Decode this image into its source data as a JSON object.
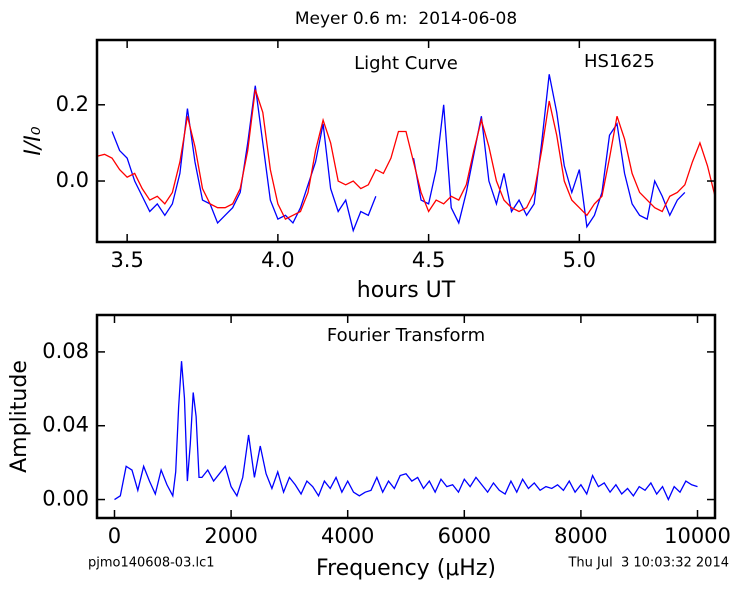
{
  "title": "Meyer 0.6 m:  2014-06-08",
  "footer_left": "pjmo140608-03.lc1",
  "footer_right": "Thu Jul  3 10:03:32 2014",
  "chart_data": [
    {
      "type": "line",
      "annotations": [
        "Light Curve",
        "HS1625"
      ],
      "xlabel": "hours UT",
      "ylabel": "I/I₀",
      "xlim": [
        3.4,
        5.45
      ],
      "ylim": [
        -0.16,
        0.37
      ],
      "xticks": [
        3.5,
        {
          "value": 4,
          "label": "4.0"
        },
        4.5,
        {
          "value": 5,
          "label": "5.0"
        }
      ],
      "yticks": [
        {
          "value": 0,
          "label": "0.0"
        },
        0.2
      ],
      "x": [
        3.4,
        3.425,
        3.45,
        3.475,
        3.5,
        3.525,
        3.55,
        3.575,
        3.6,
        3.625,
        3.65,
        3.675,
        3.7,
        3.725,
        3.75,
        3.775,
        3.8,
        3.825,
        3.85,
        3.875,
        3.9,
        3.925,
        3.95,
        3.975,
        4.0,
        4.025,
        4.05,
        4.075,
        4.1,
        4.125,
        4.15,
        4.175,
        4.2,
        4.225,
        4.25,
        4.275,
        4.3,
        4.325,
        4.35,
        4.375,
        4.4,
        4.425,
        4.45,
        4.475,
        4.5,
        4.525,
        4.55,
        4.575,
        4.6,
        4.625,
        4.65,
        4.675,
        4.7,
        4.725,
        4.75,
        4.775,
        4.8,
        4.825,
        4.85,
        4.875,
        4.9,
        4.925,
        4.95,
        4.975,
        5.0,
        5.025,
        5.05,
        5.075,
        5.1,
        5.125,
        5.15,
        5.175,
        5.2,
        5.225,
        5.25,
        5.275,
        5.3,
        5.325,
        5.35,
        5.375,
        5.4,
        5.425,
        5.45
      ],
      "series": [
        {
          "color": "#0000ff",
          "values": [
            null,
            null,
            0.13,
            0.08,
            0.06,
            0.0,
            -0.04,
            -0.08,
            -0.06,
            -0.09,
            -0.06,
            0.02,
            0.19,
            0.05,
            -0.05,
            -0.06,
            -0.11,
            -0.09,
            -0.07,
            -0.03,
            0.1,
            0.25,
            0.1,
            -0.05,
            -0.1,
            -0.09,
            -0.11,
            -0.07,
            -0.01,
            0.05,
            0.15,
            -0.02,
            -0.08,
            -0.05,
            -0.13,
            -0.08,
            -0.09,
            -0.04,
            null,
            null,
            null,
            null,
            0.06,
            -0.05,
            -0.06,
            0.03,
            0.2,
            -0.07,
            -0.11,
            -0.03,
            0.07,
            0.17,
            0.0,
            -0.06,
            0.02,
            -0.08,
            -0.05,
            -0.09,
            -0.06,
            0.1,
            0.28,
            0.18,
            0.04,
            -0.03,
            0.03,
            -0.12,
            -0.09,
            -0.03,
            0.12,
            0.15,
            0.02,
            -0.06,
            -0.09,
            -0.1,
            0.0,
            -0.04,
            -0.09,
            -0.05,
            -0.03,
            null,
            null,
            null,
            null
          ]
        },
        {
          "color": "#ff0000",
          "values": [
            0.065,
            0.07,
            0.06,
            0.03,
            0.01,
            0.02,
            -0.02,
            -0.05,
            -0.04,
            -0.06,
            -0.03,
            0.05,
            0.17,
            0.09,
            -0.02,
            -0.06,
            -0.07,
            -0.07,
            -0.06,
            -0.02,
            0.08,
            0.24,
            0.18,
            0.03,
            -0.06,
            -0.1,
            -0.09,
            -0.08,
            -0.03,
            0.08,
            0.16,
            0.1,
            0.0,
            -0.01,
            0.0,
            -0.02,
            -0.01,
            0.03,
            0.02,
            0.06,
            0.13,
            0.13,
            0.05,
            -0.03,
            -0.08,
            -0.05,
            -0.06,
            -0.04,
            -0.05,
            -0.01,
            0.08,
            0.16,
            0.09,
            0.0,
            -0.05,
            -0.07,
            -0.08,
            -0.07,
            -0.03,
            0.08,
            0.21,
            0.12,
            0.0,
            -0.05,
            -0.07,
            -0.09,
            -0.06,
            -0.04,
            0.06,
            0.17,
            0.11,
            0.02,
            -0.03,
            -0.05,
            -0.07,
            -0.08,
            -0.04,
            -0.03,
            -0.01,
            0.05,
            0.1,
            0.04,
            -0.04
          ]
        }
      ]
    },
    {
      "type": "line",
      "annotations": [
        "Fourier Transform"
      ],
      "xlabel": "Frequency (μHz)",
      "ylabel": "Amplitude",
      "xlim": [
        -300,
        10300
      ],
      "ylim": [
        -0.01,
        0.1
      ],
      "xticks": [
        0,
        2000,
        4000,
        6000,
        8000,
        10000
      ],
      "yticks": [
        {
          "value": 0,
          "label": "0.00"
        },
        0.04,
        0.08
      ],
      "x": [
        0,
        100,
        200,
        300,
        400,
        500,
        600,
        700,
        800,
        900,
        1000,
        1050,
        1100,
        1150,
        1200,
        1250,
        1300,
        1350,
        1400,
        1450,
        1500,
        1600,
        1700,
        1800,
        1900,
        2000,
        2100,
        2200,
        2300,
        2400,
        2500,
        2600,
        2700,
        2800,
        2900,
        3000,
        3100,
        3200,
        3300,
        3400,
        3500,
        3600,
        3700,
        3800,
        3900,
        4000,
        4100,
        4200,
        4300,
        4400,
        4500,
        4600,
        4700,
        4800,
        4900,
        5000,
        5100,
        5200,
        5300,
        5400,
        5500,
        5600,
        5700,
        5800,
        5900,
        6000,
        6100,
        6200,
        6300,
        6400,
        6500,
        6600,
        6700,
        6800,
        6900,
        7000,
        7100,
        7200,
        7300,
        7400,
        7500,
        7600,
        7700,
        7800,
        7900,
        8000,
        8100,
        8200,
        8300,
        8400,
        8500,
        8600,
        8700,
        8800,
        8900,
        9000,
        9100,
        9200,
        9300,
        9400,
        9500,
        9600,
        9700,
        9800,
        9900,
        10000
      ],
      "series": [
        {
          "color": "#0000ff",
          "values": [
            0.0,
            0.002,
            0.018,
            0.016,
            0.005,
            0.018,
            0.01,
            0.003,
            0.016,
            0.008,
            0.002,
            0.015,
            0.05,
            0.075,
            0.055,
            0.01,
            0.03,
            0.058,
            0.045,
            0.012,
            0.012,
            0.016,
            0.01,
            0.014,
            0.018,
            0.007,
            0.002,
            0.012,
            0.035,
            0.012,
            0.029,
            0.014,
            0.006,
            0.015,
            0.004,
            0.012,
            0.008,
            0.003,
            0.01,
            0.007,
            0.002,
            0.01,
            0.006,
            0.012,
            0.004,
            0.01,
            0.004,
            0.002,
            0.004,
            0.005,
            0.012,
            0.004,
            0.01,
            0.006,
            0.013,
            0.014,
            0.01,
            0.012,
            0.006,
            0.01,
            0.004,
            0.011,
            0.007,
            0.008,
            0.004,
            0.011,
            0.007,
            0.012,
            0.008,
            0.004,
            0.009,
            0.005,
            0.003,
            0.01,
            0.004,
            0.011,
            0.006,
            0.009,
            0.005,
            0.007,
            0.006,
            0.008,
            0.005,
            0.01,
            0.004,
            0.008,
            0.003,
            0.013,
            0.007,
            0.009,
            0.004,
            0.008,
            0.003,
            0.006,
            0.002,
            0.007,
            0.005,
            0.009,
            0.003,
            0.007,
            0.0,
            0.007,
            0.004,
            0.01,
            0.008,
            0.007
          ]
        }
      ]
    }
  ]
}
